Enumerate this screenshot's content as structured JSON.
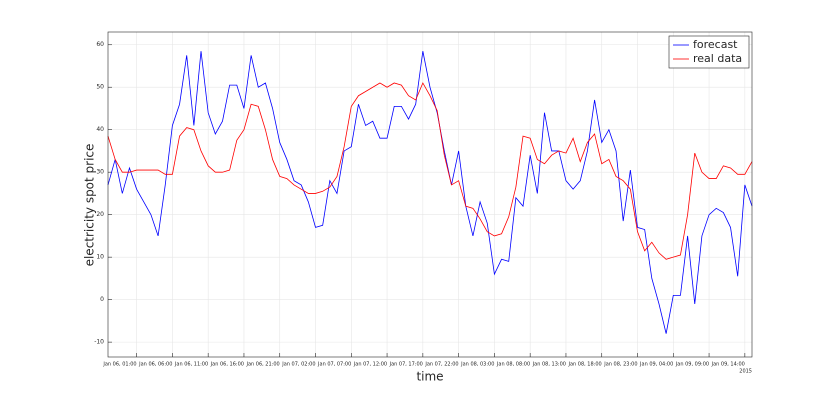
{
  "chart_data": {
    "type": "line",
    "xlabel": "time",
    "ylabel": "electricity spot price",
    "x_offset_label": "2015",
    "x": [
      "2015-01-05T21:00Z",
      "2015-01-05T22:00Z",
      "2015-01-05T23:00Z",
      "2015-01-06T00:00Z",
      "2015-01-06T01:00Z",
      "2015-01-06T02:00Z",
      "2015-01-06T03:00Z",
      "2015-01-06T04:00Z",
      "2015-01-06T05:00Z",
      "2015-01-06T06:00Z",
      "2015-01-06T07:00Z",
      "2015-01-06T08:00Z",
      "2015-01-06T09:00Z",
      "2015-01-06T10:00Z",
      "2015-01-06T11:00Z",
      "2015-01-06T12:00Z",
      "2015-01-06T13:00Z",
      "2015-01-06T14:00Z",
      "2015-01-06T15:00Z",
      "2015-01-06T16:00Z",
      "2015-01-06T17:00Z",
      "2015-01-06T18:00Z",
      "2015-01-06T19:00Z",
      "2015-01-06T20:00Z",
      "2015-01-06T21:00Z",
      "2015-01-06T22:00Z",
      "2015-01-06T23:00Z",
      "2015-01-07T00:00Z",
      "2015-01-07T01:00Z",
      "2015-01-07T02:00Z",
      "2015-01-07T03:00Z",
      "2015-01-07T04:00Z",
      "2015-01-07T05:00Z",
      "2015-01-07T06:00Z",
      "2015-01-07T07:00Z",
      "2015-01-07T08:00Z",
      "2015-01-07T09:00Z",
      "2015-01-07T10:00Z",
      "2015-01-07T11:00Z",
      "2015-01-07T12:00Z",
      "2015-01-07T13:00Z",
      "2015-01-07T14:00Z",
      "2015-01-07T15:00Z",
      "2015-01-07T16:00Z",
      "2015-01-07T17:00Z",
      "2015-01-07T18:00Z",
      "2015-01-07T19:00Z",
      "2015-01-07T20:00Z",
      "2015-01-07T21:00Z",
      "2015-01-07T22:00Z",
      "2015-01-07T23:00Z",
      "2015-01-08T00:00Z",
      "2015-01-08T01:00Z",
      "2015-01-08T02:00Z",
      "2015-01-08T03:00Z",
      "2015-01-08T04:00Z",
      "2015-01-08T05:00Z",
      "2015-01-08T06:00Z",
      "2015-01-08T07:00Z",
      "2015-01-08T08:00Z",
      "2015-01-08T09:00Z",
      "2015-01-08T10:00Z",
      "2015-01-08T11:00Z",
      "2015-01-08T12:00Z",
      "2015-01-08T13:00Z",
      "2015-01-08T14:00Z",
      "2015-01-08T15:00Z",
      "2015-01-08T16:00Z",
      "2015-01-08T17:00Z",
      "2015-01-08T18:00Z",
      "2015-01-08T19:00Z",
      "2015-01-08T20:00Z",
      "2015-01-08T21:00Z",
      "2015-01-08T22:00Z",
      "2015-01-08T23:00Z",
      "2015-01-09T00:00Z",
      "2015-01-09T01:00Z",
      "2015-01-09T02:00Z",
      "2015-01-09T03:00Z",
      "2015-01-09T04:00Z",
      "2015-01-09T05:00Z",
      "2015-01-09T06:00Z",
      "2015-01-09T07:00Z",
      "2015-01-09T08:00Z",
      "2015-01-09T09:00Z",
      "2015-01-09T10:00Z",
      "2015-01-09T11:00Z",
      "2015-01-09T12:00Z",
      "2015-01-09T13:00Z",
      "2015-01-09T14:00Z",
      "2015-01-09T15:00Z"
    ],
    "series": [
      {
        "name": "forecast",
        "color": "#0000ff",
        "values": [
          27,
          33,
          25,
          31,
          26,
          23,
          20,
          15,
          27,
          41,
          46,
          57.5,
          41,
          58.5,
          44,
          39,
          42,
          50.5,
          50.5,
          45,
          57.5,
          50,
          51,
          45,
          37,
          33,
          28,
          27,
          23,
          17,
          17.5,
          28,
          25,
          35,
          36,
          46,
          41,
          42,
          38,
          38,
          45.5,
          45.5,
          42.5,
          46,
          58.5,
          50,
          44,
          35,
          27,
          35,
          22,
          15,
          23,
          18,
          6,
          9.5,
          9,
          24,
          22,
          34,
          25,
          44,
          35,
          35,
          28,
          26,
          28,
          35,
          47,
          37,
          40,
          35,
          18.5,
          30.5,
          17,
          16.5,
          5,
          -1,
          -8,
          1,
          1,
          15,
          -1,
          15,
          20,
          21.5,
          20.5,
          17,
          5.5,
          27,
          22
        ]
      },
      {
        "name": "real data",
        "color": "#ff0000",
        "values": [
          38.5,
          33,
          30,
          30,
          30.5,
          30.5,
          30.5,
          30.5,
          29.5,
          29.5,
          38.5,
          40.5,
          40,
          35,
          31.5,
          30,
          30,
          30.5,
          37.5,
          40,
          46,
          45.5,
          40,
          33,
          29,
          28.5,
          27,
          26,
          25,
          25,
          25.5,
          26.5,
          29,
          36,
          45.5,
          48,
          49,
          50,
          51,
          50,
          51,
          50.5,
          48,
          47,
          51,
          48,
          44.5,
          34,
          27,
          28,
          22,
          21.5,
          19,
          16,
          15,
          15.5,
          19.5,
          26.5,
          38.5,
          38,
          33,
          32,
          34,
          35,
          34.5,
          38,
          32.5,
          37,
          39,
          32,
          33,
          29,
          28,
          26,
          16,
          11.5,
          13.5,
          11,
          9.5,
          10,
          10.5,
          20,
          34.5,
          30,
          28.5,
          28.5,
          31.5,
          31,
          29.5,
          29.5,
          32.5
        ]
      }
    ],
    "xlim": [
      "2015-01-05T21:00Z",
      "2015-01-09T15:00Z"
    ],
    "xticks": [
      {
        "value": "2015-01-06T01:00Z",
        "label": "Jan 06, 01:00"
      },
      {
        "value": "2015-01-06T06:00Z",
        "label": "Jan 06, 06:00"
      },
      {
        "value": "2015-01-06T11:00Z",
        "label": "Jan 06, 11:00"
      },
      {
        "value": "2015-01-06T16:00Z",
        "label": "Jan 06, 16:00"
      },
      {
        "value": "2015-01-06T21:00Z",
        "label": "Jan 06, 21:00"
      },
      {
        "value": "2015-01-07T02:00Z",
        "label": "Jan 07, 02:00"
      },
      {
        "value": "2015-01-07T07:00Z",
        "label": "Jan 07, 07:00"
      },
      {
        "value": "2015-01-07T12:00Z",
        "label": "Jan 07, 12:00"
      },
      {
        "value": "2015-01-07T17:00Z",
        "label": "Jan 07, 17:00"
      },
      {
        "value": "2015-01-07T22:00Z",
        "label": "Jan 07, 22:00"
      },
      {
        "value": "2015-01-08T03:00Z",
        "label": "Jan 08, 03:00"
      },
      {
        "value": "2015-01-08T08:00Z",
        "label": "Jan 08, 08:00"
      },
      {
        "value": "2015-01-08T13:00Z",
        "label": "Jan 08, 13:00"
      },
      {
        "value": "2015-01-08T18:00Z",
        "label": "Jan 08, 18:00"
      },
      {
        "value": "2015-01-08T23:00Z",
        "label": "Jan 08, 23:00"
      },
      {
        "value": "2015-01-09T04:00Z",
        "label": "Jan 09, 04:00"
      },
      {
        "value": "2015-01-09T09:00Z",
        "label": "Jan 09, 09:00"
      },
      {
        "value": "2015-01-09T14:00Z",
        "label": "Jan 09, 14:00"
      }
    ],
    "ylim": [
      -13.5,
      63
    ],
    "yticks": [
      -10,
      0,
      10,
      20,
      30,
      40,
      50,
      60
    ],
    "grid": true,
    "legend": "northeast"
  }
}
